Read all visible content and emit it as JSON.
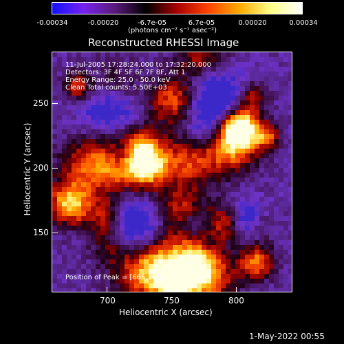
{
  "colorbar": {
    "ticks": [
      "-0.00034",
      "-0.00020",
      "-6.7e-05",
      "6.7e-05",
      "0.00020",
      "0.00034"
    ],
    "unit_label": "(photons cm⁻² s⁻¹ asec⁻²)",
    "colors": [
      "#1111ff",
      "#7722ee",
      "#5a1a7a",
      "#000000",
      "#aa0000",
      "#ff4400",
      "#ffaa00",
      "#ffff88",
      "#ffffff"
    ]
  },
  "title": "Reconstructed RHESSI Image",
  "info": {
    "time": "11-Jul-2005 17:28:24.000 to 17:32:20.000",
    "detectors": "Detectors: 3F 4F 5F 6F 7F 8F, Att 1",
    "energy": "Energy Range: 25.0 - 50.0 keV",
    "clean": "Clean     Total counts: 5.50E+03",
    "peak": "Position of Peak = [665,169]"
  },
  "xaxis": {
    "label": "Heliocentric X (arcsec)",
    "ticks": [
      "700",
      "750",
      "800"
    ]
  },
  "yaxis": {
    "label": "Heliocentric Y (arcsec)",
    "ticks": [
      "250",
      "200",
      "150"
    ]
  },
  "footer": {
    "timestamp": "1-May-2022 00:55"
  }
}
